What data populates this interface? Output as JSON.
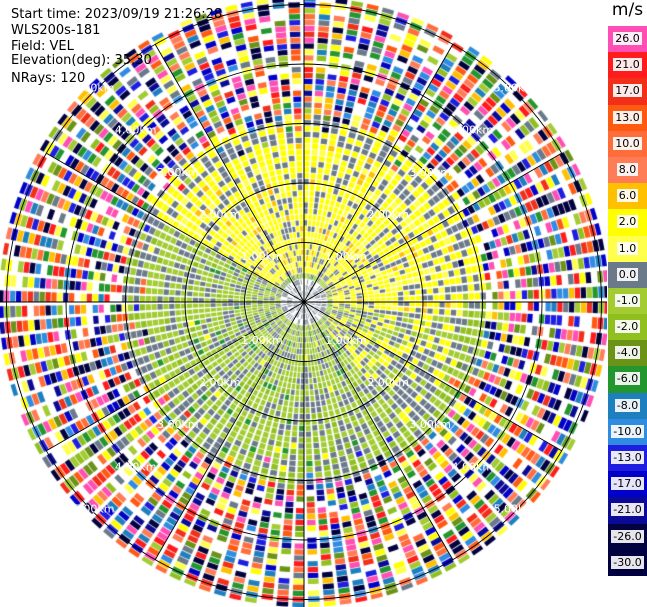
{
  "info": {
    "start_time": "Start time: 2023/09/19 21:26:28",
    "station": "WLS200s-181",
    "field": "Field: VEL",
    "elevation": "Elevation(deg): 35.30",
    "nrays": "NRays: 120"
  },
  "colorbar": {
    "unit": "m/s",
    "levels": [
      {
        "label": "26.0",
        "color": "#ff4fb4"
      },
      {
        "label": "21.0",
        "color": "#ff1c1c"
      },
      {
        "label": "17.0",
        "color": "#f2301a"
      },
      {
        "label": "13.0",
        "color": "#ff5a12"
      },
      {
        "label": "10.0",
        "color": "#ff6e3a"
      },
      {
        "label": "8.0",
        "color": "#ff7d56"
      },
      {
        "label": "6.0",
        "color": "#ffc000"
      },
      {
        "label": "2.0",
        "color": "#ffff00"
      },
      {
        "label": "1.0",
        "color": "#ffff4c"
      },
      {
        "label": "0.0",
        "color": "#6b7a8a"
      },
      {
        "label": "-1.0",
        "color": "#a2cc32"
      },
      {
        "label": "-2.0",
        "color": "#90c020"
      },
      {
        "label": "-4.0",
        "color": "#6a9318"
      },
      {
        "label": "-6.0",
        "color": "#24962e"
      },
      {
        "label": "-8.0",
        "color": "#1e7fbf"
      },
      {
        "label": "-10.0",
        "color": "#2f8ce0"
      },
      {
        "label": "-13.0",
        "color": "#1e1ee0"
      },
      {
        "label": "-17.0",
        "color": "#0000c8"
      },
      {
        "label": "-21.0",
        "color": "#0a0a96"
      },
      {
        "label": "-26.0",
        "color": "#020240"
      },
      {
        "label": "-30.0",
        "color": "#000040"
      }
    ]
  },
  "chart_data": {
    "type": "heatmap",
    "projection": "polar PPI",
    "field": "VEL",
    "units": "m/s",
    "elevation_deg": 35.3,
    "nrays": 120,
    "range_rings_km": [
      1.0,
      2.0,
      3.0,
      4.0,
      5.0
    ],
    "ring_labels": [
      "1.00km",
      "2.00km",
      "3.00km",
      "4.00km",
      "5.00km"
    ],
    "spokes_deg": [
      0,
      30,
      60,
      90,
      120,
      150,
      180,
      210,
      240,
      270,
      300,
      330
    ],
    "pattern": {
      "description_regions": [
        {
          "sector_deg": [
            300,
            90
          ],
          "range_km": [
            0.5,
            3.0
          ],
          "velocity_ms": 2.0
        },
        {
          "sector_deg": [
            180,
            300
          ],
          "range_km": [
            0.3,
            3.0
          ],
          "velocity_ms": -1.5
        },
        {
          "sector_deg": [
            90,
            180
          ],
          "range_km": [
            0.3,
            2.0
          ],
          "velocity_ms": -1.0
        },
        {
          "sector_deg": [
            0,
            360
          ],
          "range_km": [
            3.0,
            5.1
          ],
          "velocity_ms": "noise"
        }
      ]
    }
  }
}
